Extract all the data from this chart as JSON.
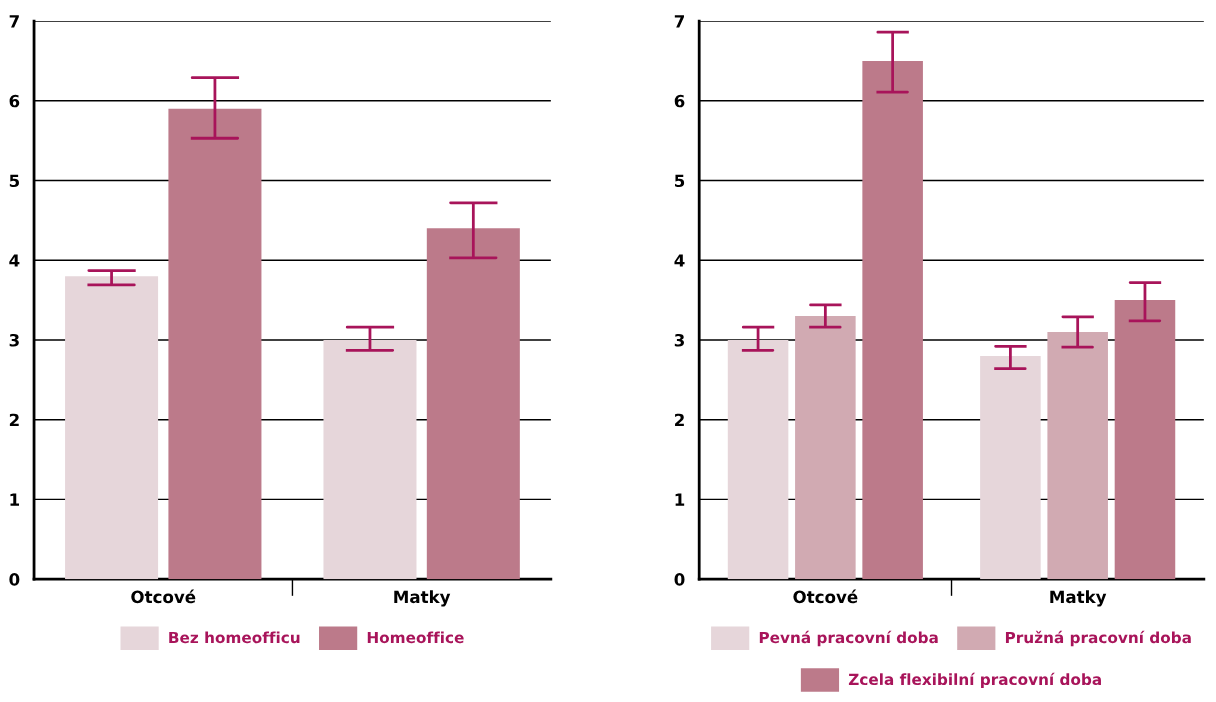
{
  "chart_data": [
    {
      "type": "bar",
      "categories": [
        "Otcové",
        "Matky"
      ],
      "ylim": [
        0,
        7
      ],
      "yticks": [
        0,
        1,
        2,
        3,
        4,
        5,
        6,
        7
      ],
      "grid": "y",
      "legend": "bottom",
      "series": [
        {
          "name": "Bez homeofficu",
          "color": "#e6d6da",
          "values": [
            3.8,
            3.0
          ],
          "errors": [
            [
              3.69,
              3.87
            ],
            [
              2.87,
              3.16
            ]
          ]
        },
        {
          "name": "Homeoffice",
          "color": "#bc7a8a",
          "values": [
            5.9,
            4.4
          ],
          "errors": [
            [
              5.53,
              6.29
            ],
            [
              4.03,
              4.72
            ]
          ]
        }
      ]
    },
    {
      "type": "bar",
      "categories": [
        "Otcové",
        "Matky"
      ],
      "ylim": [
        0,
        7
      ],
      "yticks": [
        0,
        1,
        2,
        3,
        4,
        5,
        6,
        7
      ],
      "grid": "y",
      "legend": "bottom",
      "series": [
        {
          "name": "Pevná pracovní doba",
          "color": "#e6d6da",
          "values": [
            3.0,
            2.8
          ],
          "errors": [
            [
              2.87,
              3.16
            ],
            [
              2.64,
              2.92
            ]
          ]
        },
        {
          "name": "Pružná pracovní doba",
          "color": "#d1aab2",
          "values": [
            3.3,
            3.1
          ],
          "errors": [
            [
              3.16,
              3.44
            ],
            [
              2.91,
              3.29
            ]
          ]
        },
        {
          "name": "Zcela flexibilní pracovní doba",
          "color": "#bc7a8a",
          "values": [
            6.5,
            3.5
          ],
          "errors": [
            [
              6.11,
              6.86
            ],
            [
              3.24,
              3.72
            ]
          ]
        }
      ]
    }
  ]
}
